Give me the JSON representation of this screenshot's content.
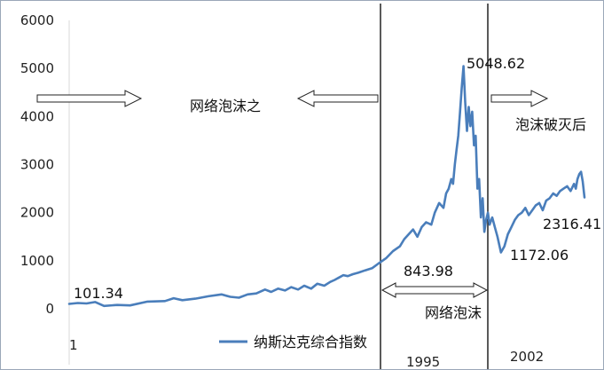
{
  "chart_data": {
    "type": "line",
    "title": "",
    "xlabel": "",
    "ylabel": "",
    "ylim": [
      0,
      6000
    ],
    "y_ticks": [
      "0",
      "1000",
      "2000",
      "3000",
      "4000",
      "5000",
      "6000"
    ],
    "x_tick_labels": [
      "1",
      "1995",
      "2002"
    ],
    "grid": false,
    "legend_position": "bottom-center",
    "series_color": "#4a7ebb",
    "series": [
      {
        "name": "纳斯达克综合指数",
        "x_index": [
          0,
          10,
          20,
          30,
          40,
          55,
          70,
          90,
          110,
          120,
          130,
          145,
          160,
          175,
          185,
          195,
          205,
          215,
          225,
          232,
          240,
          248,
          255,
          263,
          270,
          278,
          285,
          293,
          300,
          305,
          310,
          315,
          320,
          326,
          332,
          340,
          348,
          356,
          364,
          372,
          380,
          385,
          390,
          395,
          400,
          405,
          410,
          416,
          420,
          425,
          430,
          433,
          436,
          439,
          441,
          443,
          445,
          447,
          449,
          451,
          453,
          455,
          457,
          459,
          461,
          463,
          465,
          467,
          469,
          471,
          473,
          475,
          477,
          479,
          481,
          483,
          486,
          489,
          492,
          496,
          500,
          504,
          508,
          512,
          516,
          520,
          524,
          528,
          532,
          536,
          540,
          544,
          548,
          552,
          556,
          560,
          564,
          568,
          572,
          576,
          580,
          582,
          584,
          586,
          588,
          590,
          592
        ],
        "values": [
          101.34,
          120,
          110,
          140,
          60,
          80,
          70,
          150,
          160,
          220,
          180,
          210,
          260,
          300,
          250,
          230,
          300,
          320,
          400,
          350,
          420,
          380,
          450,
          400,
          480,
          420,
          520,
          480,
          560,
          600,
          650,
          700,
          680,
          720,
          750,
          800,
          843.98,
          950,
          1050,
          1200,
          1300,
          1450,
          1550,
          1650,
          1500,
          1700,
          1800,
          1750,
          2000,
          2200,
          2100,
          2400,
          2500,
          2700,
          2600,
          3000,
          3300,
          3600,
          4100,
          4600,
          5048.62,
          4300,
          3700,
          4200,
          3800,
          4100,
          3400,
          3600,
          2500,
          2700,
          1900,
          2300,
          1600,
          1850,
          2000,
          1750,
          1900,
          1700,
          1500,
          1172.06,
          1300,
          1550,
          1700,
          1850,
          1950,
          2000,
          2100,
          1950,
          2050,
          2150,
          2200,
          2050,
          2250,
          2300,
          2400,
          2350,
          2450,
          2500,
          2550,
          2450,
          2600,
          2500,
          2700,
          2800,
          2850,
          2650,
          2316.41
        ]
      }
    ],
    "annotations": {
      "start_value": "101.34",
      "value_1995": "843.98",
      "peak_value": "5048.62",
      "trough_value": "1172.06",
      "end_value": "2316.41"
    },
    "bubble_before": "网络泡沫之",
    "bubble_period": "网络泡沫",
    "bubble_after": "泡沫破灭后"
  }
}
